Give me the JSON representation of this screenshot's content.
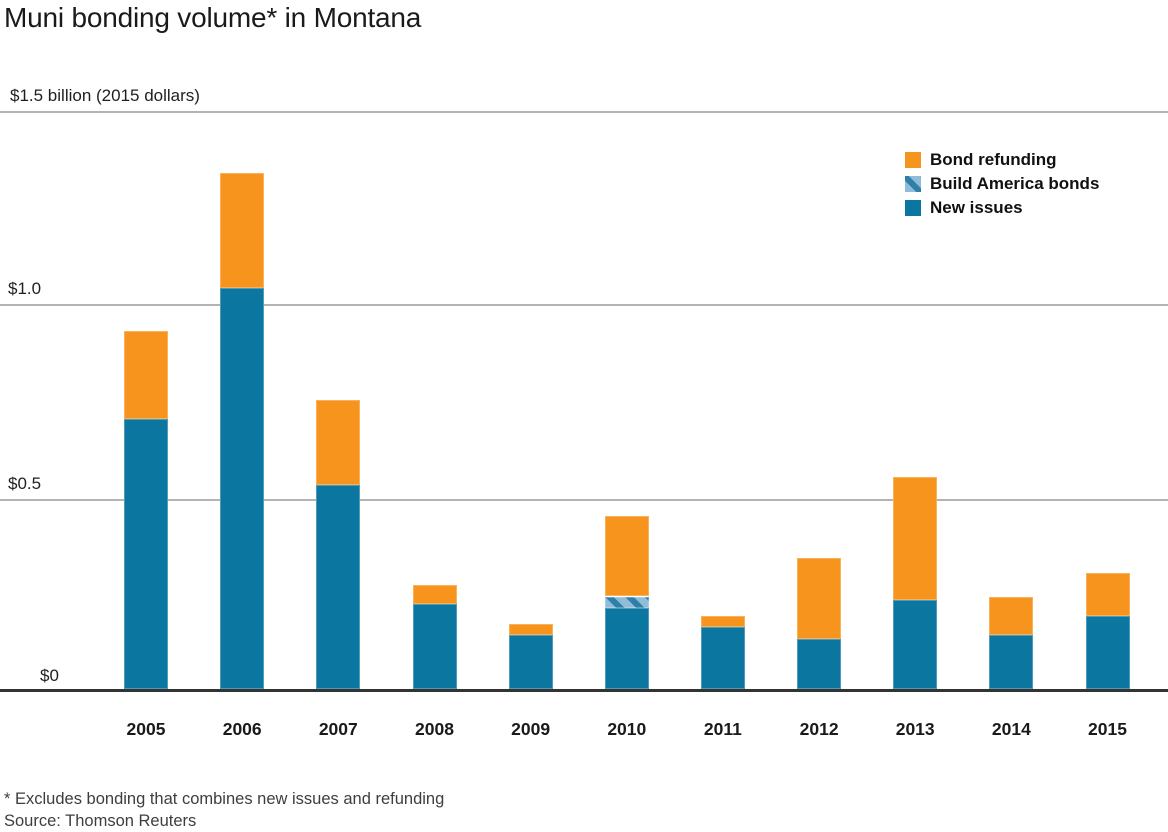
{
  "title": "Muni bonding volume* in Montana",
  "y_axis": {
    "top_label": "$1.5 billion (2015 dollars)",
    "tick_labels": [
      "$1.0",
      "$0.5",
      "$0"
    ],
    "tick_values": [
      1.5,
      1.0,
      0.5,
      0
    ]
  },
  "legend": {
    "items": [
      {
        "label": "Bond refunding",
        "color": "#F7941E"
      },
      {
        "label": "Build America bonds",
        "color": "#8FBCD8",
        "pattern": "diagonal-stripes"
      },
      {
        "label": "New issues",
        "color": "#0B76A0"
      }
    ]
  },
  "footnote": "* Excludes bonding that combines new issues and refunding",
  "source": "Source: Thomson Reuters",
  "colors": {
    "bond_refunding": "#F7941E",
    "new_issues": "#0B76A0",
    "build_america_light": "#8FBCD8",
    "build_america_dark": "#2E80A9",
    "gridline": "#b3b3b3",
    "axis": "#333333",
    "text": "#1a1a1a"
  },
  "chart_data": {
    "type": "bar",
    "stacked": true,
    "title": "Muni bonding volume* in Montana",
    "ylabel": "$ billion (2015 dollars)",
    "ylim": [
      0,
      1.5
    ],
    "yticks": [
      0,
      0.5,
      1.0,
      1.5
    ],
    "grid": true,
    "legend_position": "top-right",
    "units": "billions of 2015 dollars",
    "categories": [
      "2005",
      "2006",
      "2007",
      "2008",
      "2009",
      "2010",
      "2011",
      "2012",
      "2013",
      "2014",
      "2015"
    ],
    "series": [
      {
        "name": "New issues",
        "values": [
          0.7,
          1.04,
          0.53,
          0.22,
          0.14,
          0.21,
          0.16,
          0.13,
          0.23,
          0.14,
          0.19
        ]
      },
      {
        "name": "Build America bonds",
        "values": [
          0,
          0,
          0,
          0,
          0,
          0.03,
          0,
          0,
          0,
          0,
          0
        ]
      },
      {
        "name": "Bond refunding",
        "values": [
          0.23,
          0.3,
          0.22,
          0.05,
          0.03,
          0.21,
          0.03,
          0.21,
          0.32,
          0.1,
          0.11
        ]
      }
    ]
  }
}
